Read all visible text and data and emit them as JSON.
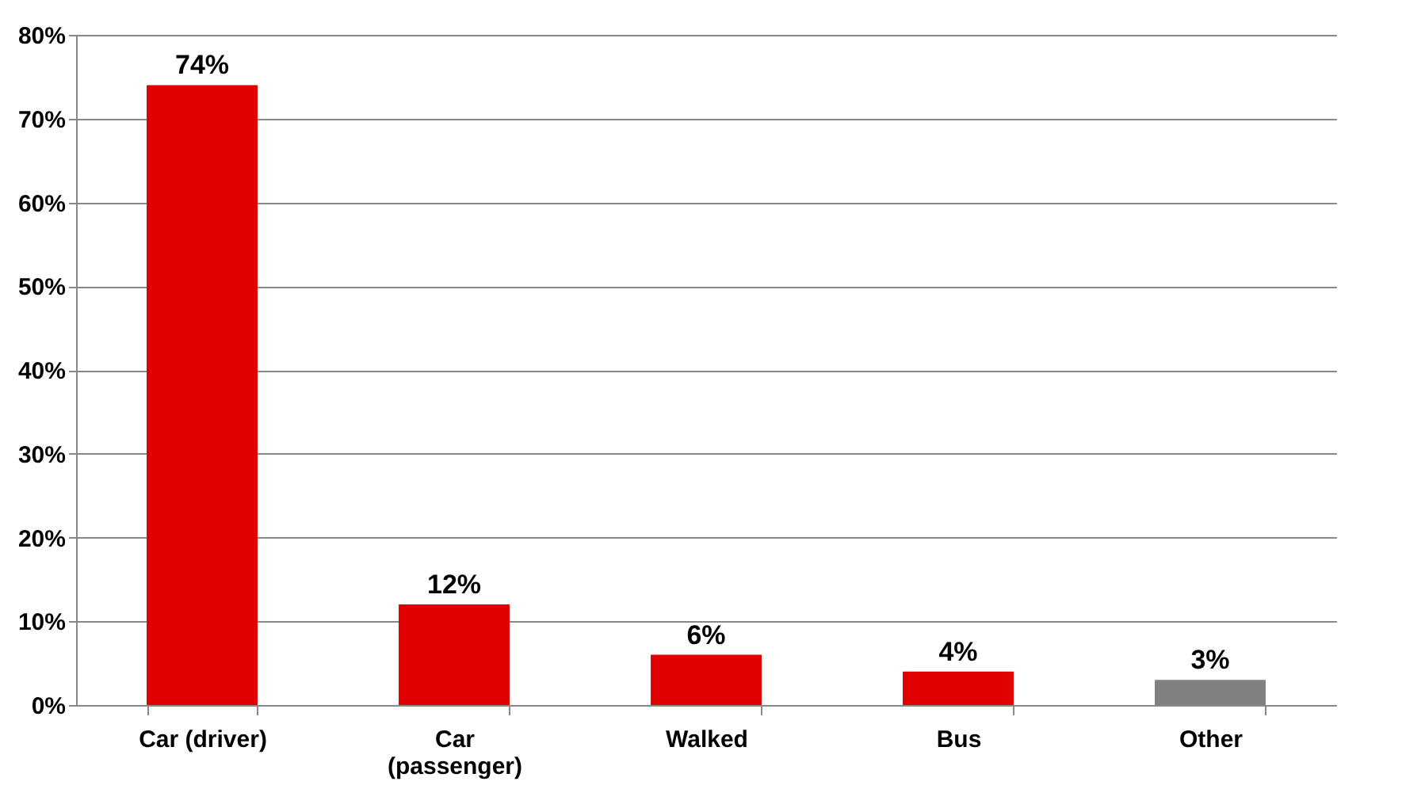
{
  "chart_data": {
    "type": "bar",
    "categories": [
      "Car (driver)",
      "Car (passenger)",
      "Walked",
      "Bus",
      "Other"
    ],
    "values": [
      74,
      12,
      6,
      4,
      3
    ],
    "colors": [
      "#e00000",
      "#e00000",
      "#e00000",
      "#e00000",
      "#808080"
    ],
    "value_labels": [
      "74%",
      "12%",
      "6%",
      "4%",
      "3%"
    ],
    "ylim": [
      0,
      80
    ],
    "yticks": [
      {
        "value": 0,
        "label": "0%"
      },
      {
        "value": 10,
        "label": "10%"
      },
      {
        "value": 20,
        "label": "20%"
      },
      {
        "value": 30,
        "label": "30%"
      },
      {
        "value": 40,
        "label": "40%"
      },
      {
        "value": 50,
        "label": "50%"
      },
      {
        "value": 60,
        "label": "60%"
      },
      {
        "value": 70,
        "label": "70%"
      },
      {
        "value": 80,
        "label": "80%"
      }
    ],
    "grid": "y"
  }
}
